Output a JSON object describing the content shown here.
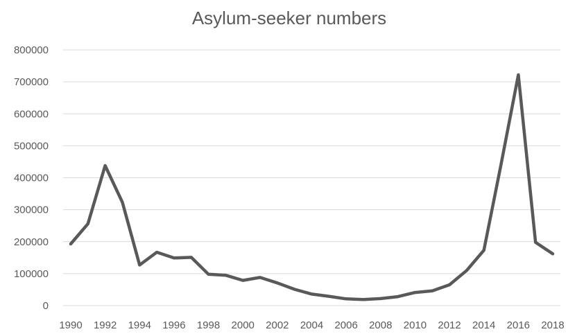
{
  "chart_data": {
    "type": "line",
    "title": "Asylum-seeker numbers",
    "xlabel": "",
    "ylabel": "",
    "x": [
      1990,
      1991,
      1992,
      1993,
      1994,
      1995,
      1996,
      1997,
      1998,
      1999,
      2000,
      2001,
      2002,
      2003,
      2004,
      2005,
      2006,
      2007,
      2008,
      2009,
      2010,
      2011,
      2012,
      2013,
      2014,
      2015,
      2016,
      2017,
      2018
    ],
    "x_tick_labels": [
      "1990",
      "1992",
      "1994",
      "1996",
      "1998",
      "2000",
      "2002",
      "2004",
      "2006",
      "2008",
      "2010",
      "2012",
      "2014",
      "2016",
      "2018"
    ],
    "y_tick_labels": [
      "0",
      "100000",
      "200000",
      "300000",
      "400000",
      "500000",
      "600000",
      "700000",
      "800000"
    ],
    "ylim": [
      0,
      800000
    ],
    "grid": true,
    "legend": "none",
    "series": [
      {
        "color": "#595959",
        "values": [
          193000,
          256000,
          438000,
          323000,
          127000,
          167000,
          149000,
          151000,
          98000,
          95000,
          79000,
          88000,
          71000,
          51000,
          36000,
          29000,
          21000,
          19000,
          22000,
          28000,
          41000,
          46000,
          65000,
          110000,
          173000,
          442000,
          722000,
          198000,
          162000
        ]
      }
    ]
  }
}
